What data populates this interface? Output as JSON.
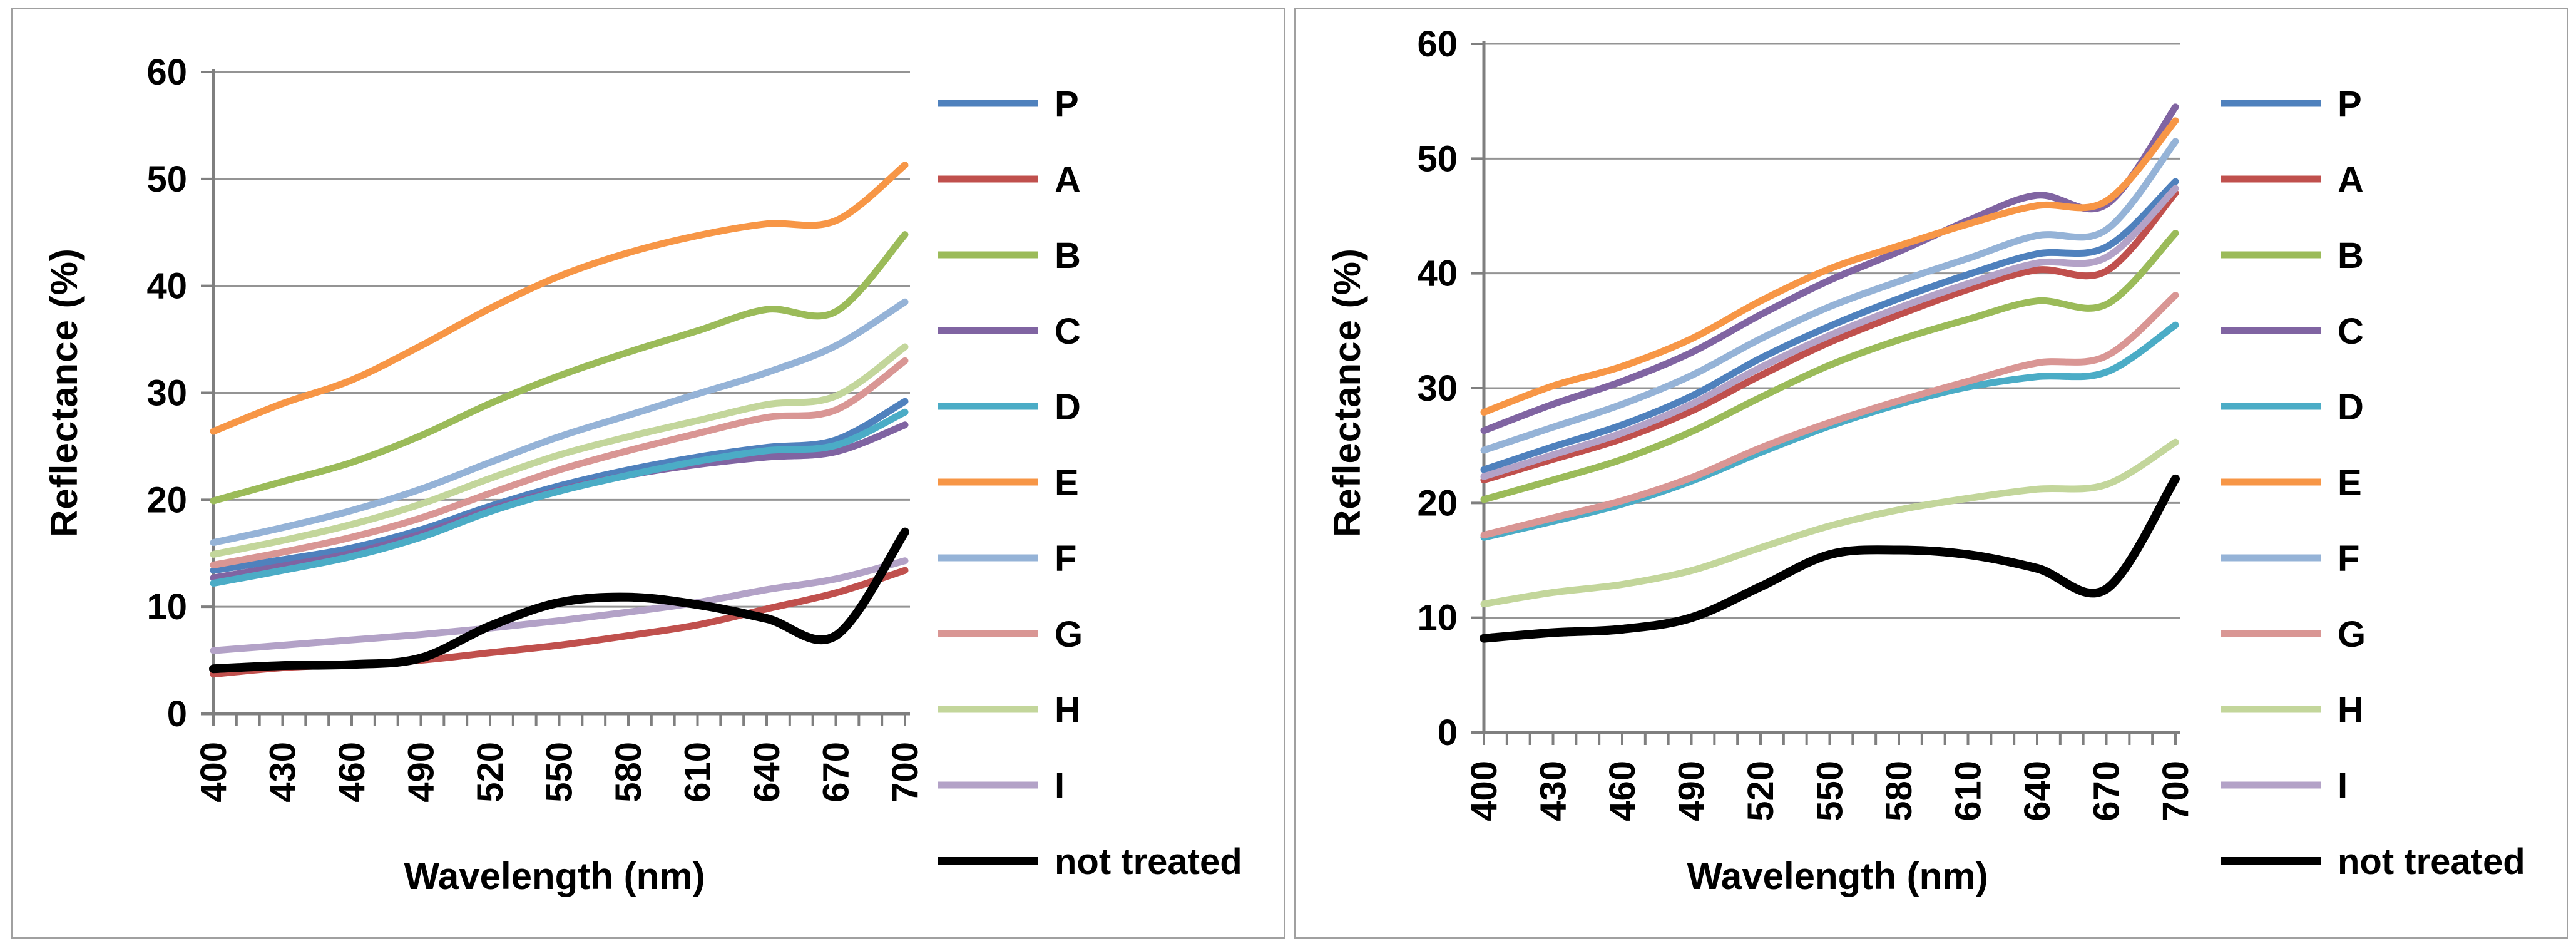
{
  "figure": {
    "description": "Two side-by-side line charts of spectral reflectance of treated samples (P, A-I) versus a not treated sample",
    "grid_color": "#949494",
    "axis_color": "#7f7f7f",
    "panel_border_color": "#a0a0a0",
    "text_color": "#000000"
  },
  "chart_data": [
    {
      "type": "line",
      "title": "",
      "xlabel": "Wavelength (nm)",
      "ylabel": "Reflectance (%)",
      "x": [
        400,
        430,
        460,
        490,
        520,
        550,
        580,
        610,
        640,
        670,
        700
      ],
      "xtick_labels": [
        "400",
        "430",
        "460",
        "490",
        "520",
        "550",
        "580",
        "610",
        "640",
        "670",
        "700"
      ],
      "xtick_minor_step_nm": 10,
      "xlim": [
        400,
        700
      ],
      "ylim": [
        0,
        60
      ],
      "yticks": [
        0,
        10,
        20,
        30,
        40,
        50,
        60
      ],
      "grid": true,
      "legend_position": "right",
      "series": [
        {
          "name": "P",
          "color": "#4F81BD",
          "values": [
            13.4,
            14.4,
            15.5,
            17.2,
            19.4,
            21.3,
            22.8,
            24.0,
            24.9,
            25.6,
            29.2
          ]
        },
        {
          "name": "A",
          "color": "#C0504D",
          "values": [
            3.7,
            4.3,
            4.6,
            5.0,
            5.7,
            6.4,
            7.3,
            8.3,
            9.8,
            11.3,
            13.4
          ]
        },
        {
          "name": "B",
          "color": "#9BBB59",
          "values": [
            19.9,
            21.7,
            23.5,
            26.0,
            29.0,
            31.6,
            33.8,
            35.8,
            37.8,
            37.6,
            44.8
          ]
        },
        {
          "name": "C",
          "color": "#8064A2",
          "values": [
            12.7,
            13.8,
            15.0,
            16.8,
            19.1,
            20.9,
            22.3,
            23.3,
            24.0,
            24.5,
            27.0
          ]
        },
        {
          "name": "D",
          "color": "#4BACC6",
          "values": [
            12.2,
            13.4,
            14.7,
            16.5,
            18.9,
            20.8,
            22.3,
            23.6,
            24.6,
            25.1,
            28.2
          ]
        },
        {
          "name": "E",
          "color": "#F79646",
          "values": [
            26.4,
            29.0,
            31.2,
            34.4,
            37.9,
            40.9,
            43.1,
            44.7,
            45.8,
            46.1,
            51.3
          ]
        },
        {
          "name": "F",
          "color": "#95B3D7",
          "values": [
            16.0,
            17.4,
            19.0,
            21.0,
            23.5,
            25.9,
            27.9,
            29.9,
            31.9,
            34.4,
            38.5
          ]
        },
        {
          "name": "G",
          "color": "#D99694",
          "values": [
            13.9,
            15.1,
            16.5,
            18.3,
            20.6,
            22.8,
            24.6,
            26.2,
            27.7,
            28.4,
            33.0
          ]
        },
        {
          "name": "H",
          "color": "#C3D69B",
          "values": [
            14.9,
            16.2,
            17.7,
            19.6,
            22.0,
            24.2,
            25.9,
            27.4,
            28.9,
            29.7,
            34.3
          ]
        },
        {
          "name": "I",
          "color": "#B3A2C7",
          "values": [
            5.9,
            6.4,
            6.9,
            7.4,
            8.0,
            8.7,
            9.5,
            10.4,
            11.6,
            12.6,
            14.3
          ]
        },
        {
          "name": "not treated",
          "color": "#000000",
          "values": [
            4.2,
            4.5,
            4.6,
            5.2,
            8.2,
            10.4,
            10.9,
            10.2,
            8.9,
            7.3,
            17.0
          ]
        }
      ]
    },
    {
      "type": "line",
      "title": "",
      "xlabel": "Wavelength (nm)",
      "ylabel": "Reflectance (%)",
      "x": [
        400,
        430,
        460,
        490,
        520,
        550,
        580,
        610,
        640,
        670,
        700
      ],
      "xtick_labels": [
        "400",
        "430",
        "460",
        "490",
        "520",
        "550",
        "580",
        "610",
        "640",
        "670",
        "700"
      ],
      "xtick_minor_step_nm": 10,
      "xlim": [
        400,
        700
      ],
      "ylim": [
        0,
        60
      ],
      "yticks": [
        0,
        10,
        20,
        30,
        40,
        50,
        60
      ],
      "grid": true,
      "legend_position": "right",
      "series": [
        {
          "name": "P",
          "color": "#4F81BD",
          "values": [
            22.9,
            24.9,
            26.8,
            29.3,
            32.6,
            35.4,
            37.8,
            39.9,
            41.7,
            42.3,
            48.0
          ]
        },
        {
          "name": "A",
          "color": "#C0504D",
          "values": [
            22.0,
            23.8,
            25.6,
            28.0,
            31.1,
            34.0,
            36.4,
            38.6,
            40.3,
            40.2,
            47.0
          ]
        },
        {
          "name": "B",
          "color": "#9BBB59",
          "values": [
            20.3,
            22.0,
            23.8,
            26.2,
            29.2,
            32.0,
            34.2,
            36.0,
            37.6,
            37.3,
            43.5
          ]
        },
        {
          "name": "C",
          "color": "#8064A2",
          "values": [
            26.3,
            28.6,
            30.6,
            33.1,
            36.4,
            39.4,
            41.9,
            44.6,
            46.8,
            46.0,
            54.5
          ]
        },
        {
          "name": "D",
          "color": "#4BACC6",
          "values": [
            17.0,
            18.4,
            19.9,
            21.9,
            24.4,
            26.7,
            28.6,
            30.1,
            31.0,
            31.4,
            35.5
          ]
        },
        {
          "name": "E",
          "color": "#F79646",
          "values": [
            27.9,
            30.2,
            31.9,
            34.3,
            37.6,
            40.4,
            42.4,
            44.3,
            45.9,
            46.3,
            53.3
          ]
        },
        {
          "name": "F",
          "color": "#95B3D7",
          "values": [
            24.6,
            26.6,
            28.6,
            31.1,
            34.3,
            37.1,
            39.3,
            41.3,
            43.3,
            43.8,
            51.5
          ]
        },
        {
          "name": "G",
          "color": "#D99694",
          "values": [
            17.2,
            18.7,
            20.2,
            22.2,
            24.8,
            27.0,
            28.9,
            30.6,
            32.2,
            32.8,
            38.1
          ]
        },
        {
          "name": "H",
          "color": "#C3D69B",
          "values": [
            11.2,
            12.2,
            12.9,
            14.1,
            16.1,
            18.0,
            19.4,
            20.4,
            21.2,
            21.6,
            25.3
          ]
        },
        {
          "name": "I",
          "color": "#B3A2C7",
          "values": [
            22.3,
            24.2,
            26.1,
            28.6,
            31.8,
            34.6,
            37.0,
            39.1,
            40.9,
            41.4,
            47.4
          ]
        },
        {
          "name": "not treated",
          "color": "#000000",
          "values": [
            8.2,
            8.7,
            9.0,
            10.0,
            12.7,
            15.5,
            15.9,
            15.5,
            14.3,
            12.5,
            22.1
          ]
        }
      ]
    }
  ]
}
